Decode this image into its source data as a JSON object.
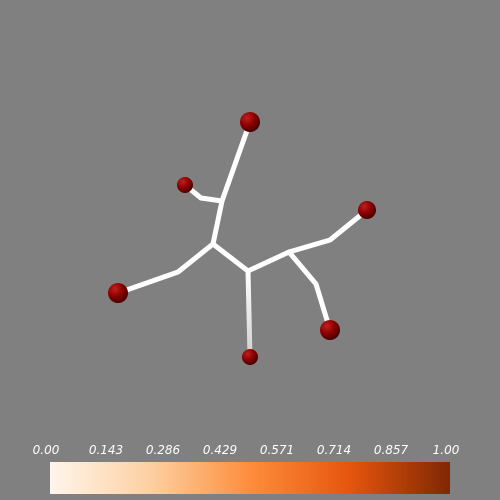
{
  "scene": {
    "background": "#808080",
    "branch_color": "#ffffff",
    "node_color": "#8b0000"
  },
  "colorbar": {
    "ticks": [
      "0.00",
      "0.143",
      "0.286",
      "0.429",
      "0.571",
      "0.714",
      "0.857",
      "1.00"
    ],
    "colors": [
      "#fff5eb",
      "#fdd0a2",
      "#fd8d3c",
      "#e6550d",
      "#7f2704"
    ]
  }
}
